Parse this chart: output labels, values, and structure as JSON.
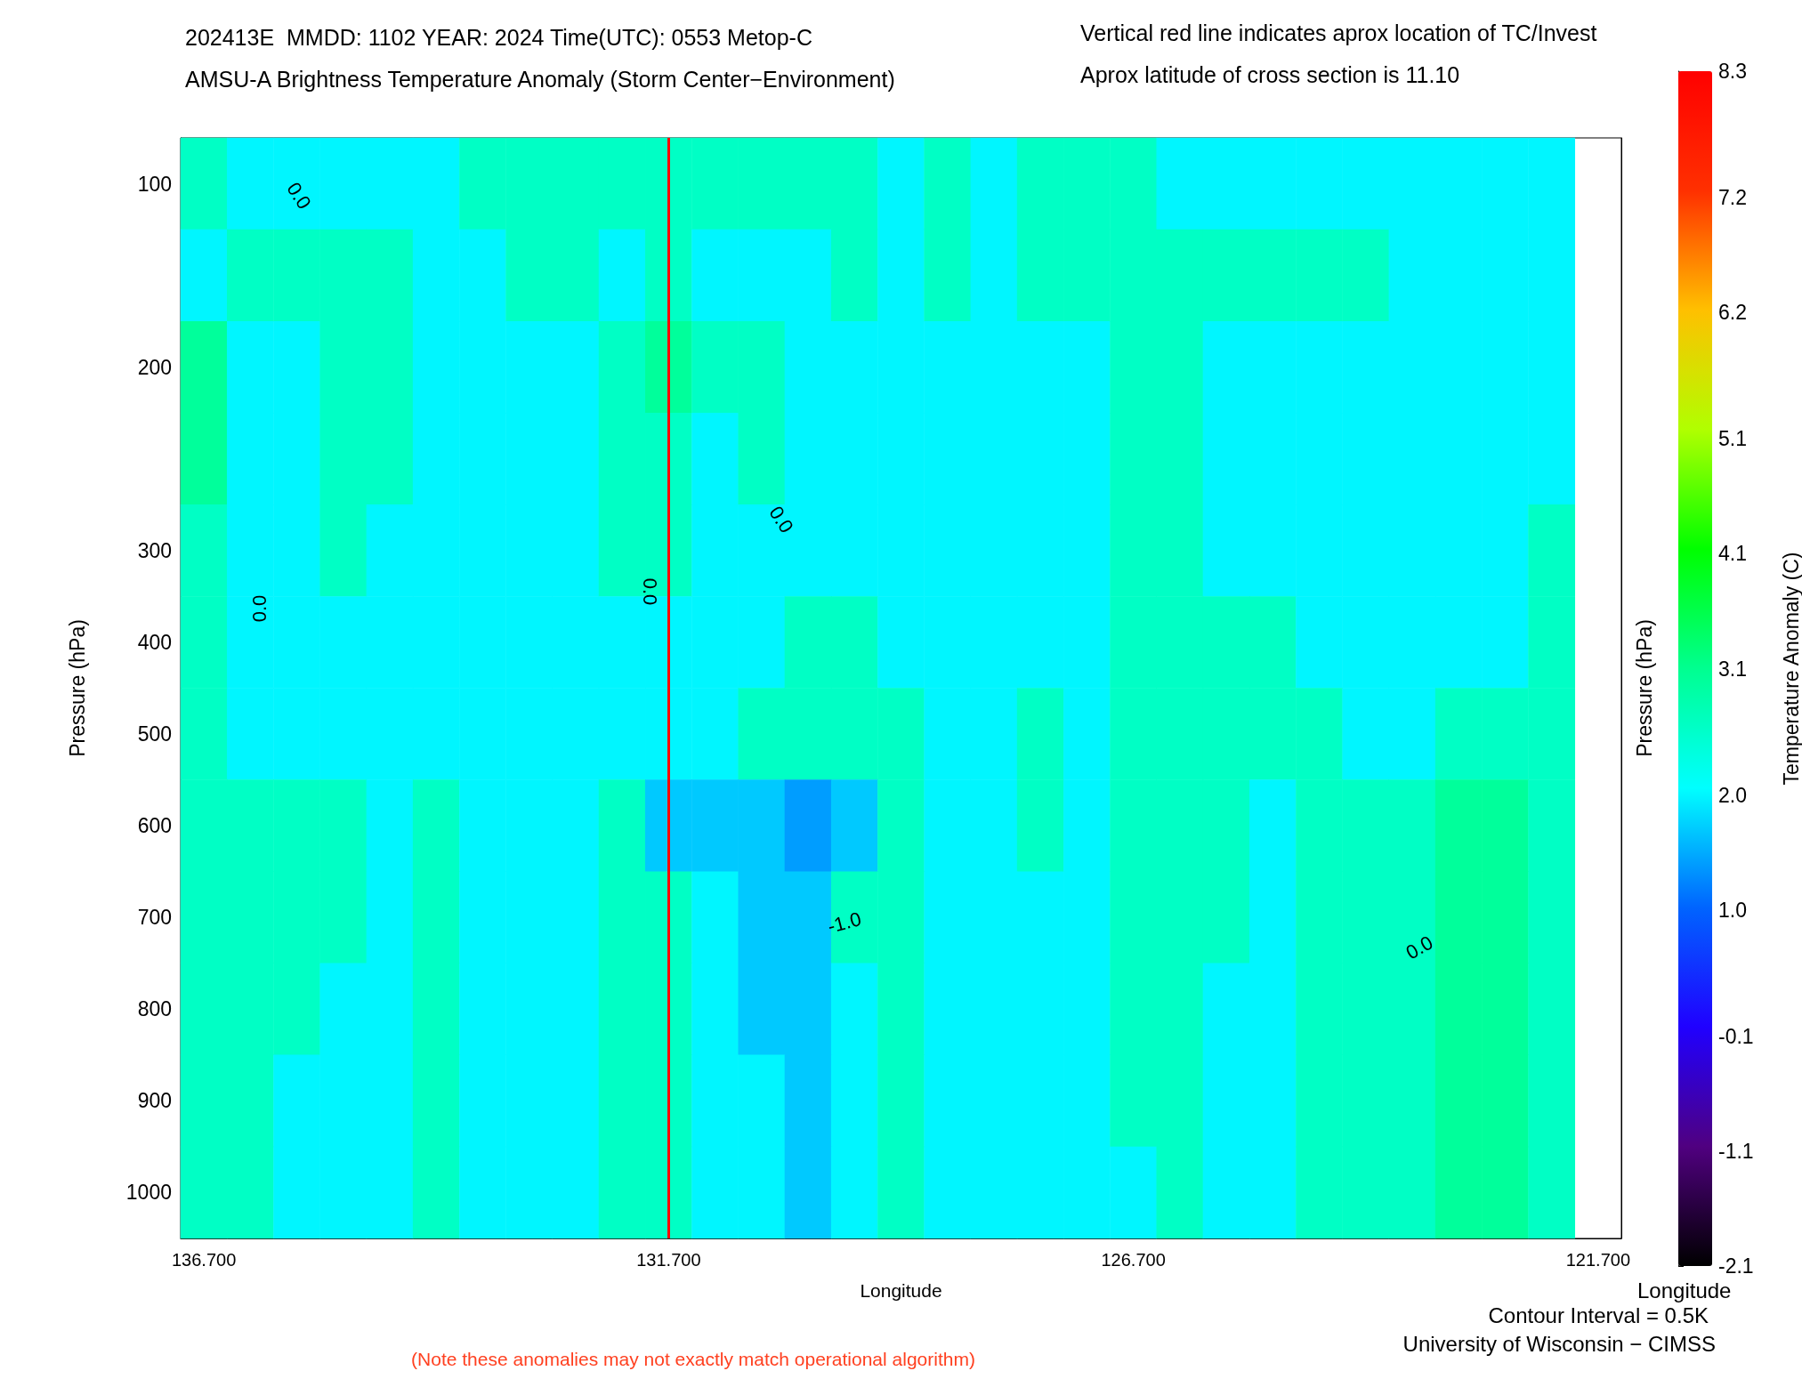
{
  "chart_data": {
    "type": "heatmap",
    "title": "202413E  MMDD: 1102 YEAR: 2024 Time(UTC): 0553 Metop-C",
    "subtitle": "AMSU-A Brightness Temperature Anomaly (Storm Center−Environment)",
    "xlabel": "Longitude",
    "ylabel": "Pressure (hPa)",
    "y2label": "Pressure (hPa)",
    "clabel": "Temperature Anomaly (C)",
    "annotations": [
      "Vertical red line indicates aprox location of TC/Invest",
      "Aprox latitude of cross section is 11.10",
      "Contour Interval = 0.5K",
      "Longitude",
      "University of Wisconsin − CIMSS",
      "(Note these anomalies may not exactly match operational algorithm)",
      "0.0",
      "0.0",
      "0.0",
      "0.0",
      "-1.0",
      "0.0"
    ],
    "categories": [
      "136.700",
      null,
      null,
      null,
      null,
      null,
      null,
      null,
      null,
      null,
      "131.700",
      null,
      null,
      null,
      null,
      null,
      null,
      null,
      null,
      null,
      "126.700",
      null,
      null,
      null,
      null,
      null,
      null,
      null,
      null,
      null,
      "121.700"
    ],
    "y_categories": [
      "100",
      null,
      "200",
      null,
      "300",
      "400",
      "500",
      "600",
      "700",
      "800",
      "900",
      "1000"
    ],
    "cells": [
      [
        2.6,
        2.0,
        2.0,
        2.0,
        2.0,
        2.0,
        2.6,
        2.6,
        2.6,
        2.6,
        2.6,
        2.6,
        2.6,
        2.6,
        2.6,
        2.0,
        2.6,
        2.0,
        2.6,
        2.6,
        2.6,
        2.0,
        2.0,
        2.0,
        2.0,
        2.0,
        2.0,
        2.0,
        2.0,
        2.0,
        null
      ],
      [
        2.0,
        2.6,
        2.6,
        2.6,
        2.6,
        2.0,
        2.0,
        2.6,
        2.6,
        2.0,
        2.6,
        2.0,
        2.0,
        2.0,
        2.6,
        2.0,
        2.6,
        2.0,
        2.6,
        2.6,
        2.6,
        2.6,
        2.6,
        2.6,
        2.6,
        2.6,
        2.0,
        2.0,
        2.0,
        2.0,
        null
      ],
      [
        3.0,
        2.0,
        2.0,
        2.6,
        2.6,
        2.0,
        2.0,
        2.0,
        2.0,
        2.6,
        3.0,
        2.6,
        2.6,
        2.0,
        2.0,
        2.0,
        2.0,
        2.0,
        2.0,
        2.0,
        2.6,
        2.6,
        2.0,
        2.0,
        2.0,
        2.0,
        2.0,
        2.0,
        2.0,
        2.0,
        null
      ],
      [
        3.0,
        2.0,
        2.0,
        2.6,
        2.6,
        2.0,
        2.0,
        2.0,
        2.0,
        2.6,
        2.6,
        2.0,
        2.6,
        2.0,
        2.0,
        2.0,
        2.0,
        2.0,
        2.0,
        2.0,
        2.6,
        2.6,
        2.0,
        2.0,
        2.0,
        2.0,
        2.0,
        2.0,
        2.0,
        2.0,
        null
      ],
      [
        2.6,
        2.0,
        2.0,
        2.6,
        2.0,
        2.0,
        2.0,
        2.0,
        2.0,
        2.6,
        2.6,
        2.0,
        2.0,
        2.0,
        2.0,
        2.0,
        2.0,
        2.0,
        2.0,
        2.0,
        2.6,
        2.6,
        2.0,
        2.0,
        2.0,
        2.0,
        2.0,
        2.0,
        2.0,
        2.6,
        null
      ],
      [
        2.6,
        2.0,
        2.0,
        2.0,
        2.0,
        2.0,
        2.0,
        2.0,
        2.0,
        2.0,
        2.0,
        2.0,
        2.0,
        2.6,
        2.6,
        2.0,
        2.0,
        2.0,
        2.0,
        2.0,
        2.6,
        2.6,
        2.6,
        2.6,
        2.0,
        2.0,
        2.0,
        2.0,
        2.0,
        2.6,
        null
      ],
      [
        2.6,
        2.0,
        2.0,
        2.0,
        2.0,
        2.0,
        2.0,
        2.0,
        2.0,
        2.0,
        2.0,
        2.0,
        2.6,
        2.6,
        2.6,
        2.6,
        2.0,
        2.0,
        2.6,
        2.0,
        2.6,
        2.6,
        2.6,
        2.6,
        2.6,
        2.0,
        2.0,
        2.6,
        2.6,
        2.6,
        null
      ],
      [
        2.6,
        2.6,
        2.6,
        2.6,
        2.0,
        2.6,
        2.0,
        2.0,
        2.0,
        2.6,
        1.7,
        1.7,
        1.7,
        1.4,
        1.7,
        2.6,
        2.0,
        2.0,
        2.6,
        2.0,
        2.6,
        2.6,
        2.6,
        2.0,
        2.6,
        2.6,
        2.6,
        3.0,
        3.0,
        2.6,
        null
      ],
      [
        2.6,
        2.6,
        2.6,
        2.6,
        2.0,
        2.6,
        2.0,
        2.0,
        2.0,
        2.6,
        2.6,
        2.0,
        1.7,
        1.7,
        2.6,
        2.6,
        2.0,
        2.0,
        2.0,
        2.0,
        2.6,
        2.6,
        2.6,
        2.0,
        2.6,
        2.6,
        2.6,
        3.0,
        3.0,
        2.6,
        null
      ],
      [
        2.6,
        2.6,
        2.6,
        2.0,
        2.0,
        2.6,
        2.0,
        2.0,
        2.0,
        2.6,
        2.6,
        2.0,
        1.7,
        1.7,
        2.0,
        2.6,
        2.0,
        2.0,
        2.0,
        2.0,
        2.6,
        2.6,
        2.0,
        2.0,
        2.6,
        2.6,
        2.6,
        3.0,
        3.0,
        2.6,
        null
      ],
      [
        2.6,
        2.6,
        2.0,
        2.0,
        2.0,
        2.6,
        2.0,
        2.0,
        2.0,
        2.6,
        2.6,
        2.0,
        2.0,
        1.7,
        2.0,
        2.6,
        2.0,
        2.0,
        2.0,
        2.0,
        2.6,
        2.6,
        2.0,
        2.0,
        2.6,
        2.6,
        2.6,
        3.0,
        3.0,
        2.6,
        null
      ],
      [
        2.6,
        2.6,
        2.0,
        2.0,
        2.0,
        2.6,
        2.0,
        2.0,
        2.0,
        2.6,
        2.6,
        2.0,
        2.0,
        1.7,
        2.0,
        2.6,
        2.0,
        2.0,
        2.0,
        2.0,
        2.0,
        2.6,
        2.0,
        2.0,
        2.6,
        2.6,
        2.6,
        3.0,
        3.0,
        2.6,
        null
      ]
    ],
    "clim": [
      -2.1,
      8.3
    ],
    "cticks": [
      -2.1,
      -1.1,
      -0.1,
      {
        "value": 1.0,
        "label": "1.0"
      },
      {
        "value": 2.0,
        "label": "2.0"
      },
      3.1,
      4.1,
      5.1,
      6.2,
      7.2,
      8.3
    ],
    "ref_lines": [
      {
        "axis": "x",
        "value": "131.700",
        "color": "#ff0000"
      }
    ]
  }
}
